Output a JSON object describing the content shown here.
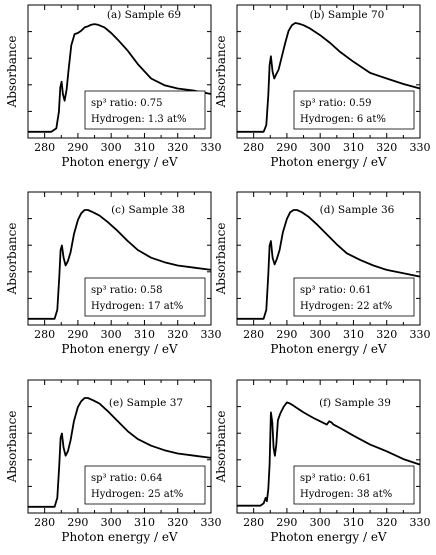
{
  "chart_data": [
    {
      "type": "line",
      "panel_label": "(a)  Sample 69",
      "xlabel": "Photon energy / eV",
      "ylabel": "Absorbance",
      "xlim": [
        275,
        330
      ],
      "x_ticks": [
        280,
        290,
        300,
        310,
        320,
        330
      ],
      "annotation": {
        "sp_line": "sp³ ratio: 0.75",
        "h_line": "Hydrogen: 1.3 at%"
      },
      "series": [
        {
          "x": [
            275,
            282,
            283.5,
            284.3,
            284.7,
            285.1,
            285.5,
            286.0,
            286.6,
            287.2,
            288.0,
            289.0,
            290.0,
            291.0,
            292.0,
            293.0,
            294.0,
            295.0,
            296.0,
            298.0,
            300.0,
            302.0,
            305.0,
            308.0,
            312.0,
            316.0,
            320.0,
            325.0,
            330.0
          ],
          "y": [
            0.02,
            0.02,
            0.05,
            0.2,
            0.42,
            0.47,
            0.36,
            0.3,
            0.4,
            0.58,
            0.8,
            0.9,
            0.91,
            0.93,
            0.96,
            0.97,
            0.985,
            0.99,
            0.985,
            0.96,
            0.91,
            0.85,
            0.75,
            0.63,
            0.5,
            0.44,
            0.41,
            0.39,
            0.36
          ]
        }
      ]
    },
    {
      "type": "line",
      "panel_label": "(b) Sample 70",
      "xlabel": "Photon energy / eV",
      "ylabel": "Absorbance",
      "xlim": [
        275,
        330
      ],
      "x_ticks": [
        280,
        290,
        300,
        310,
        320,
        330
      ],
      "annotation": {
        "sp_line": "sp³ ratio: 0.59",
        "h_line": "Hydrogen: 6 at%"
      },
      "series": [
        {
          "x": [
            275,
            283.0,
            283.8,
            284.4,
            284.8,
            285.2,
            285.7,
            286.2,
            286.8,
            287.5,
            288.5,
            289.5,
            290.5,
            291.5,
            292.5,
            293.5,
            295.0,
            297.0,
            300.0,
            303.0,
            306.0,
            310.0,
            315.0,
            320.0,
            325.0,
            330.0
          ],
          "y": [
            0.02,
            0.02,
            0.08,
            0.35,
            0.62,
            0.7,
            0.56,
            0.5,
            0.54,
            0.58,
            0.7,
            0.82,
            0.93,
            0.98,
            1.0,
            0.995,
            0.98,
            0.95,
            0.89,
            0.82,
            0.74,
            0.65,
            0.55,
            0.5,
            0.45,
            0.41
          ]
        }
      ]
    },
    {
      "type": "line",
      "panel_label": "(c) Sample 38",
      "xlabel": "Photon energy / eV",
      "ylabel": "Absorbance",
      "xlim": [
        275,
        330
      ],
      "x_ticks": [
        280,
        290,
        300,
        310,
        320,
        330
      ],
      "annotation": {
        "sp_line": "sp³ ratio: 0.58",
        "h_line": "Hydrogen: 17 at%"
      },
      "series": [
        {
          "x": [
            275,
            283.0,
            283.8,
            284.4,
            284.8,
            285.2,
            285.7,
            286.3,
            287.0,
            287.8,
            288.8,
            290.0,
            291.0,
            292.0,
            293.0,
            294.5,
            296.5,
            299.0,
            302.0,
            305.0,
            308.0,
            312.0,
            316.0,
            320.0,
            325.0,
            330.0
          ],
          "y": [
            0.02,
            0.02,
            0.1,
            0.4,
            0.64,
            0.68,
            0.57,
            0.5,
            0.54,
            0.62,
            0.78,
            0.91,
            0.97,
            1.0,
            1.0,
            0.98,
            0.95,
            0.89,
            0.81,
            0.72,
            0.64,
            0.57,
            0.53,
            0.5,
            0.48,
            0.46
          ]
        }
      ]
    },
    {
      "type": "line",
      "panel_label": "(d) Sample 36",
      "xlabel": "Photon energy / eV",
      "ylabel": "Absorbance",
      "xlim": [
        275,
        330
      ],
      "x_ticks": [
        280,
        290,
        300,
        310,
        320,
        330
      ],
      "annotation": {
        "sp_line": "sp³ ratio: 0.61",
        "h_line": "Hydrogen: 22 at%"
      },
      "series": [
        {
          "x": [
            275,
            283.0,
            283.8,
            284.4,
            284.8,
            285.2,
            285.7,
            286.3,
            287.0,
            287.8,
            288.8,
            290.0,
            291.0,
            292.0,
            293.0,
            294.5,
            296.5,
            299.0,
            302.0,
            305.0,
            308.0,
            312.0,
            316.0,
            320.0,
            325.0,
            330.0
          ],
          "y": [
            0.02,
            0.02,
            0.1,
            0.42,
            0.68,
            0.72,
            0.57,
            0.51,
            0.56,
            0.64,
            0.8,
            0.92,
            0.98,
            1.0,
            1.0,
            0.98,
            0.94,
            0.87,
            0.78,
            0.69,
            0.61,
            0.55,
            0.5,
            0.46,
            0.43,
            0.4
          ]
        }
      ]
    },
    {
      "type": "line",
      "panel_label": "(e) Sample 37",
      "xlabel": "Photon energy / eV",
      "ylabel": "Absorbance",
      "xlim": [
        275,
        330
      ],
      "x_ticks": [
        280,
        290,
        300,
        310,
        320,
        330
      ],
      "annotation": {
        "sp_line": "sp³ ratio: 0.64",
        "h_line": "Hydrogen: 25 at%"
      },
      "series": [
        {
          "x": [
            275,
            283.0,
            283.8,
            284.4,
            284.8,
            285.2,
            285.7,
            286.3,
            287.0,
            287.8,
            288.8,
            290.0,
            291.0,
            292.0,
            293.0,
            294.5,
            296.5,
            299.0,
            302.0,
            305.0,
            308.0,
            312.0,
            316.0,
            320.0,
            325.0,
            330.0
          ],
          "y": [
            0.02,
            0.02,
            0.1,
            0.4,
            0.64,
            0.68,
            0.55,
            0.48,
            0.52,
            0.62,
            0.79,
            0.92,
            0.97,
            1.0,
            1.0,
            0.98,
            0.95,
            0.88,
            0.79,
            0.7,
            0.63,
            0.57,
            0.53,
            0.5,
            0.48,
            0.46
          ]
        }
      ]
    },
    {
      "type": "line",
      "panel_label": "(f) Sample 39",
      "xlabel": "Photon energy / eV",
      "ylabel": "Absorbance",
      "xlim": [
        275,
        330
      ],
      "x_ticks": [
        280,
        290,
        300,
        310,
        320,
        330
      ],
      "annotation": {
        "sp_line": "sp³ ratio: 0.61",
        "h_line": "Hydrogen: 38 at%"
      },
      "series": [
        {
          "x": [
            275,
            282.0,
            283.0,
            283.6,
            284.0,
            284.4,
            284.8,
            285.2,
            285.6,
            286.0,
            286.4,
            286.8,
            287.3,
            288.0,
            289.0,
            290.0,
            291.0,
            292.0,
            293.0,
            295.0,
            298.0,
            300.0,
            302.0,
            302.7,
            303.4,
            304.0,
            306.0,
            310.0,
            315.0,
            320.0,
            325.0,
            330.0
          ],
          "y": [
            0.03,
            0.03,
            0.05,
            0.1,
            0.07,
            0.18,
            0.4,
            0.87,
            0.78,
            0.55,
            0.48,
            0.58,
            0.8,
            0.86,
            0.92,
            0.96,
            0.95,
            0.93,
            0.91,
            0.87,
            0.82,
            0.79,
            0.76,
            0.79,
            0.78,
            0.76,
            0.73,
            0.66,
            0.58,
            0.52,
            0.45,
            0.4
          ]
        }
      ]
    }
  ]
}
